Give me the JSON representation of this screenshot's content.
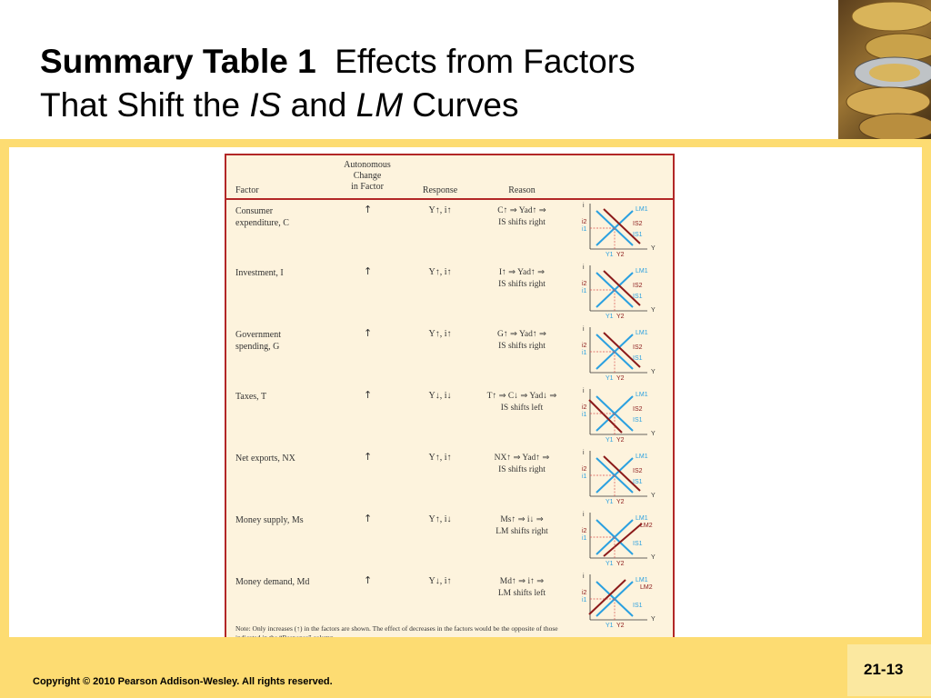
{
  "slide": {
    "title_bold": "Summary Table 1",
    "title_rest_1": "Effects from Factors",
    "title_line2_a": "That Shift the ",
    "title_line2_is": "IS",
    "title_line2_b": " and ",
    "title_line2_lm": "LM",
    "title_line2_c": " Curves",
    "copyright": "Copyright © 2010 Pearson Addison-Wesley. All rights reserved.",
    "slide_number": "21-13"
  },
  "table": {
    "headers": {
      "factor": "Factor",
      "autonomous_change": [
        "Autonomous",
        "Change",
        "in Factor"
      ],
      "response": "Response",
      "reason": "Reason"
    },
    "rows": [
      {
        "factor": [
          "Consumer",
          "expenditure, C"
        ],
        "change": "↑",
        "response": "Y↑, i↑",
        "reason": [
          "C↑ ⇒ Yad↑ ⇒",
          "IS shifts right"
        ],
        "graph": "is_right"
      },
      {
        "factor": [
          "Investment, I"
        ],
        "change": "↑",
        "response": "Y↑, i↑",
        "reason": [
          "I↑ ⇒ Yad↑ ⇒",
          "IS shifts right"
        ],
        "graph": "is_right"
      },
      {
        "factor": [
          "Government",
          "spending, G"
        ],
        "change": "↑",
        "response": "Y↑, i↑",
        "reason": [
          "G↑ ⇒ Yad↑ ⇒",
          "IS shifts right"
        ],
        "graph": "is_right"
      },
      {
        "factor": [
          "Taxes, T"
        ],
        "change": "↑",
        "response": "Y↓, i↓",
        "reason": [
          "T↑ ⇒ C↓ ⇒ Yad↓ ⇒",
          "IS shifts left"
        ],
        "graph": "is_left"
      },
      {
        "factor": [
          "Net exports, NX"
        ],
        "change": "↑",
        "response": "Y↑, i↑",
        "reason": [
          "NX↑ ⇒ Yad↑ ⇒",
          "IS shifts right"
        ],
        "graph": "is_right"
      },
      {
        "factor": [
          "Money supply, Ms"
        ],
        "change": "↑",
        "response": "Y↑, i↓",
        "reason": [
          "Ms↑ ⇒ i↓ ⇒",
          "LM shifts right"
        ],
        "graph": "lm_right"
      },
      {
        "factor": [
          "Money demand, Md"
        ],
        "change": "↑",
        "response": "Y↓, i↑",
        "reason": [
          "Md↑ ⇒ i↑ ⇒",
          "LM shifts left"
        ],
        "graph": "lm_left"
      }
    ],
    "note": "Note: Only increases (↑) in the factors are shown. The effect of decreases in the factors would be the opposite of those indicated in the “Response” column.",
    "graph_labels": {
      "i": "i",
      "Y": "Y",
      "i1": "i1",
      "i2": "i2",
      "Y1": "Y1",
      "Y2": "Y2",
      "IS1": "IS1",
      "IS2": "IS2",
      "LM1": "LM1",
      "LM2": "LM2"
    },
    "colors": {
      "original_curve": "#2aa0e0",
      "shifted_curve": "#8b1a1a",
      "border": "#b22727",
      "dashed": "#d9534f"
    }
  }
}
